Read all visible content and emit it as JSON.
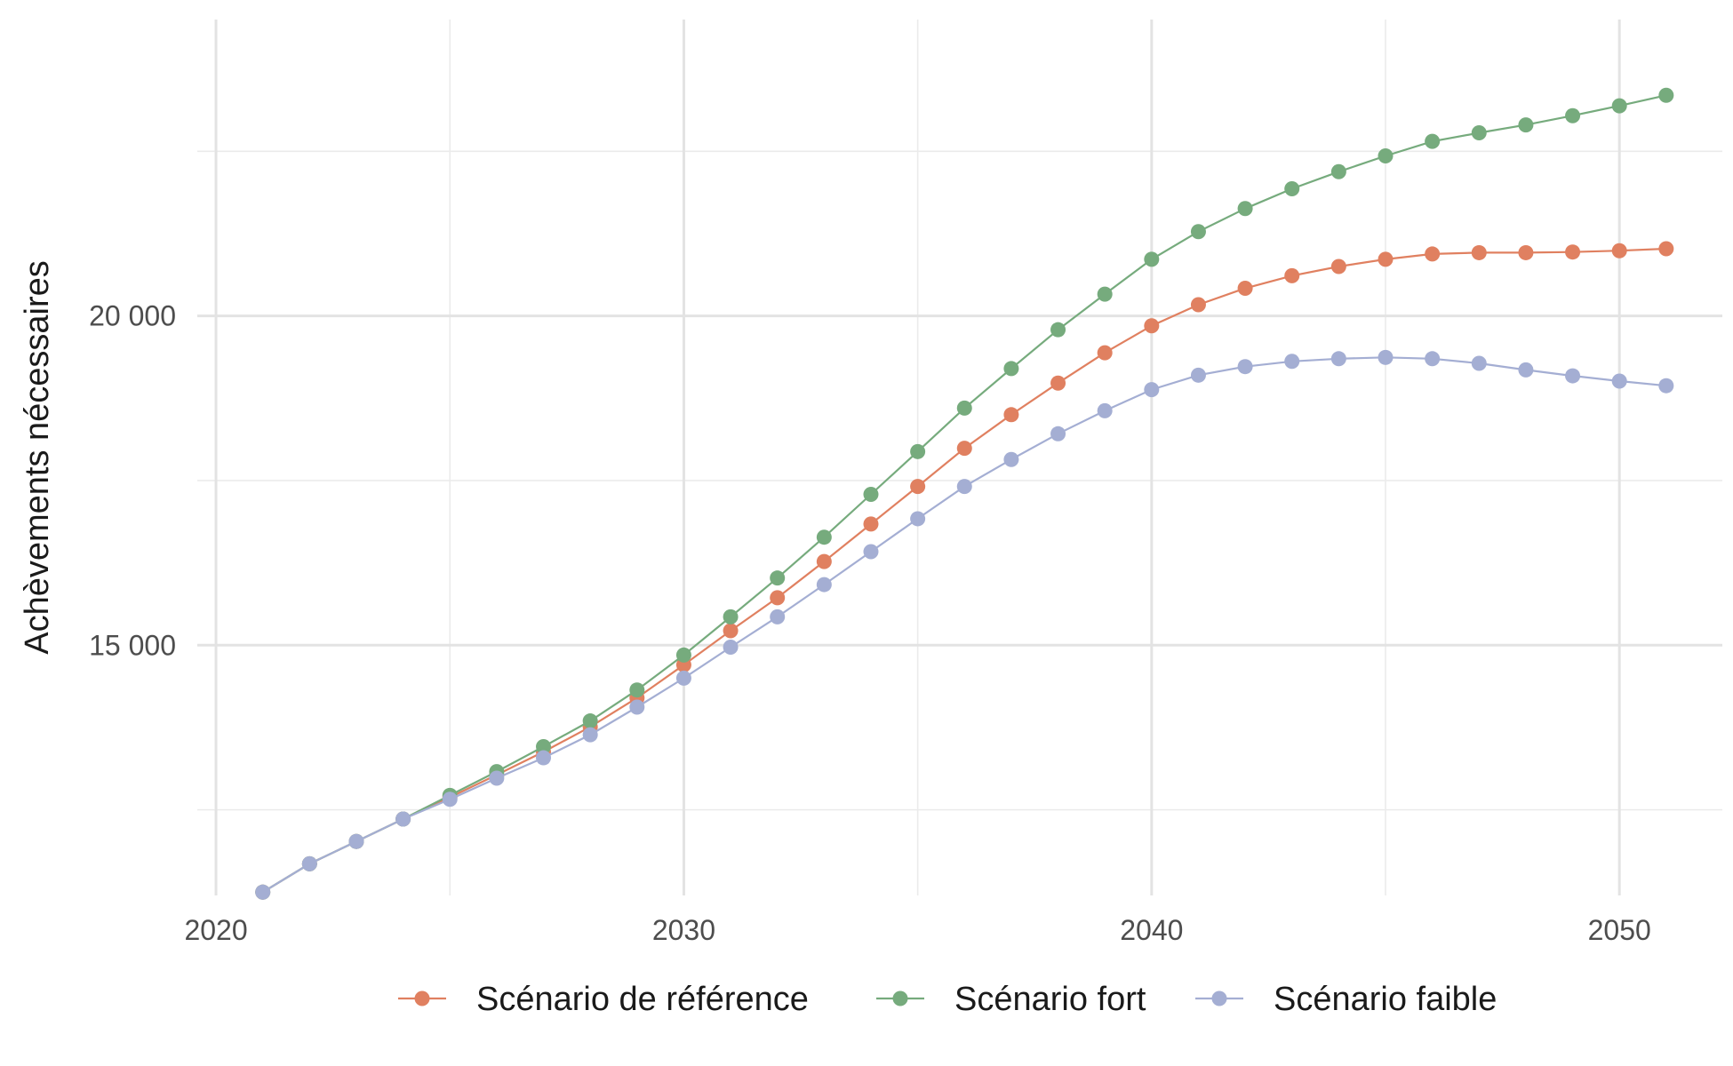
{
  "chart_data": {
    "type": "line",
    "title": "",
    "xlabel": "",
    "ylabel": "Achèvements nécessaires",
    "xlim": [
      2019.6,
      2052.2
    ],
    "ylim": [
      11200,
      24500
    ],
    "x_ticks": [
      2020,
      2030,
      2040,
      2050
    ],
    "x_tick_labels": [
      "2020",
      "2030",
      "2040",
      "2050"
    ],
    "y_ticks": [
      15000,
      20000
    ],
    "y_tick_labels": [
      "15 000",
      "20 000"
    ],
    "x_minor": [
      2025,
      2035,
      2045
    ],
    "y_minor": [
      12500,
      17500,
      22500
    ],
    "grid": true,
    "legend_position": "bottom",
    "x": [
      2021,
      2022,
      2023,
      2024,
      2025,
      2026,
      2027,
      2028,
      2029,
      2030,
      2031,
      2032,
      2033,
      2034,
      2035,
      2036,
      2037,
      2038,
      2039,
      2040,
      2041,
      2042,
      2043,
      2044,
      2045,
      2046,
      2047,
      2048,
      2049,
      2050,
      2051
    ],
    "series": [
      {
        "name": "Scénario de référence",
        "color": "#e08060",
        "values": [
          11250,
          11680,
          12020,
          12360,
          12690,
          13030,
          13380,
          13760,
          14200,
          14700,
          15220,
          15720,
          16270,
          16840,
          17410,
          17990,
          18500,
          18980,
          19440,
          19850,
          20170,
          20420,
          20610,
          20750,
          20860,
          20940,
          20960,
          20960,
          20970,
          20990,
          21020
        ]
      },
      {
        "name": "Scénario fort",
        "color": "#76ab7d",
        "values": [
          11250,
          11680,
          12020,
          12360,
          12720,
          13080,
          13460,
          13850,
          14320,
          14850,
          15430,
          16020,
          16640,
          17290,
          17940,
          18600,
          19200,
          19790,
          20330,
          20860,
          21280,
          21630,
          21930,
          22190,
          22430,
          22650,
          22780,
          22900,
          23040,
          23190,
          23350
        ]
      },
      {
        "name": "Scénario faible",
        "color": "#a4aed3",
        "values": [
          11250,
          11680,
          12020,
          12360,
          12660,
          12980,
          13290,
          13640,
          14060,
          14500,
          14970,
          15430,
          15920,
          16420,
          16920,
          17410,
          17820,
          18210,
          18560,
          18880,
          19100,
          19230,
          19310,
          19350,
          19370,
          19350,
          19280,
          19180,
          19090,
          19010,
          18940
        ]
      }
    ]
  }
}
